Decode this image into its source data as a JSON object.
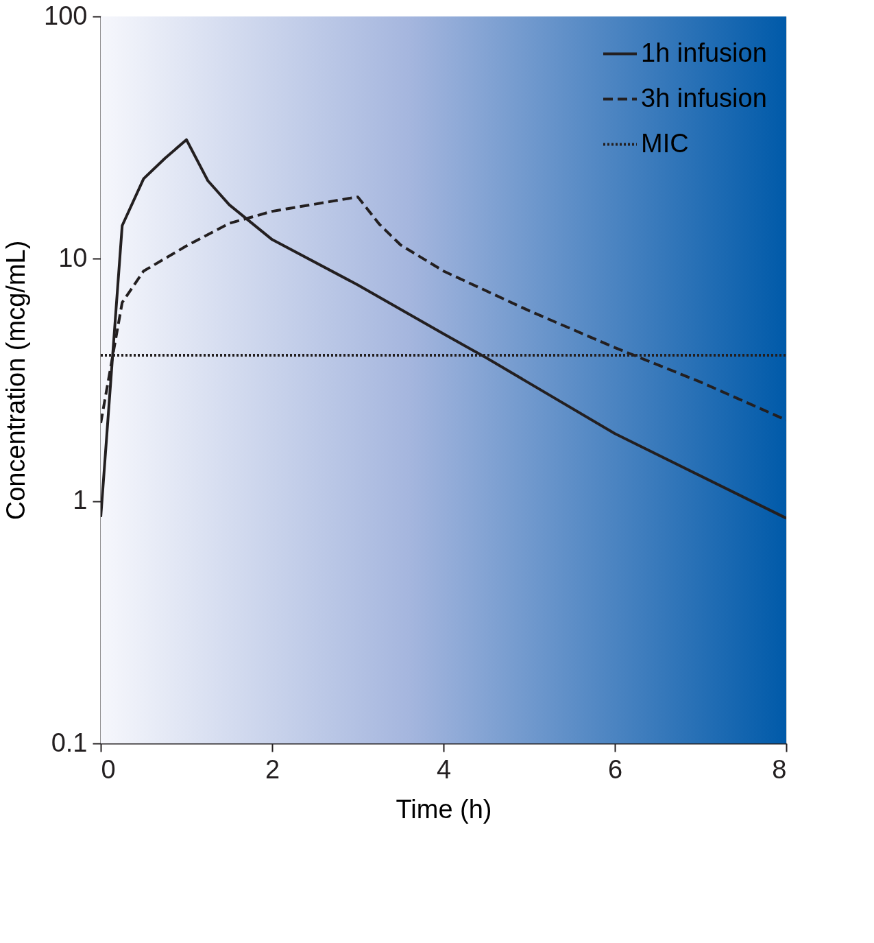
{
  "chart_data": {
    "type": "line",
    "xlabel": "Time (h)",
    "ylabel": "Concentration (mcg/mL)",
    "xlim": [
      0,
      8
    ],
    "xticks": [
      0,
      2,
      4,
      6,
      8
    ],
    "ylim": [
      0.1,
      100
    ],
    "yticks": [
      0.1,
      1,
      10,
      100
    ],
    "log": true,
    "grid": false,
    "legend": "top right",
    "marker": "none",
    "series": [
      {
        "name": "1h infusion",
        "color": "#231f20",
        "line_style": "solid",
        "x": [
          0,
          0.25,
          0.5,
          0.75,
          1,
          1.25,
          1.5,
          2,
          3,
          4,
          4.5,
          6,
          8
        ],
        "values": [
          0.86,
          13.7,
          21.4,
          26,
          31,
          21,
          16.7,
          12,
          7.8,
          4.9,
          3.9,
          1.9,
          0.85
        ]
      },
      {
        "name": "3h infusion",
        "color": "#231f20",
        "line_style": "dashed",
        "x": [
          0,
          0.25,
          0.5,
          1,
          1.5,
          2,
          3,
          3.25,
          3.5,
          4,
          5,
          6,
          7,
          8
        ],
        "values": [
          2.1,
          6.6,
          8.9,
          11.3,
          14,
          15.7,
          18,
          13.9,
          11.4,
          8.9,
          6.1,
          4.3,
          3.1,
          2.16
        ]
      },
      {
        "name": "MIC",
        "color": "#231f20",
        "line_style": "dotted",
        "x": [
          0,
          8
        ],
        "values": [
          4,
          4
        ]
      }
    ]
  }
}
